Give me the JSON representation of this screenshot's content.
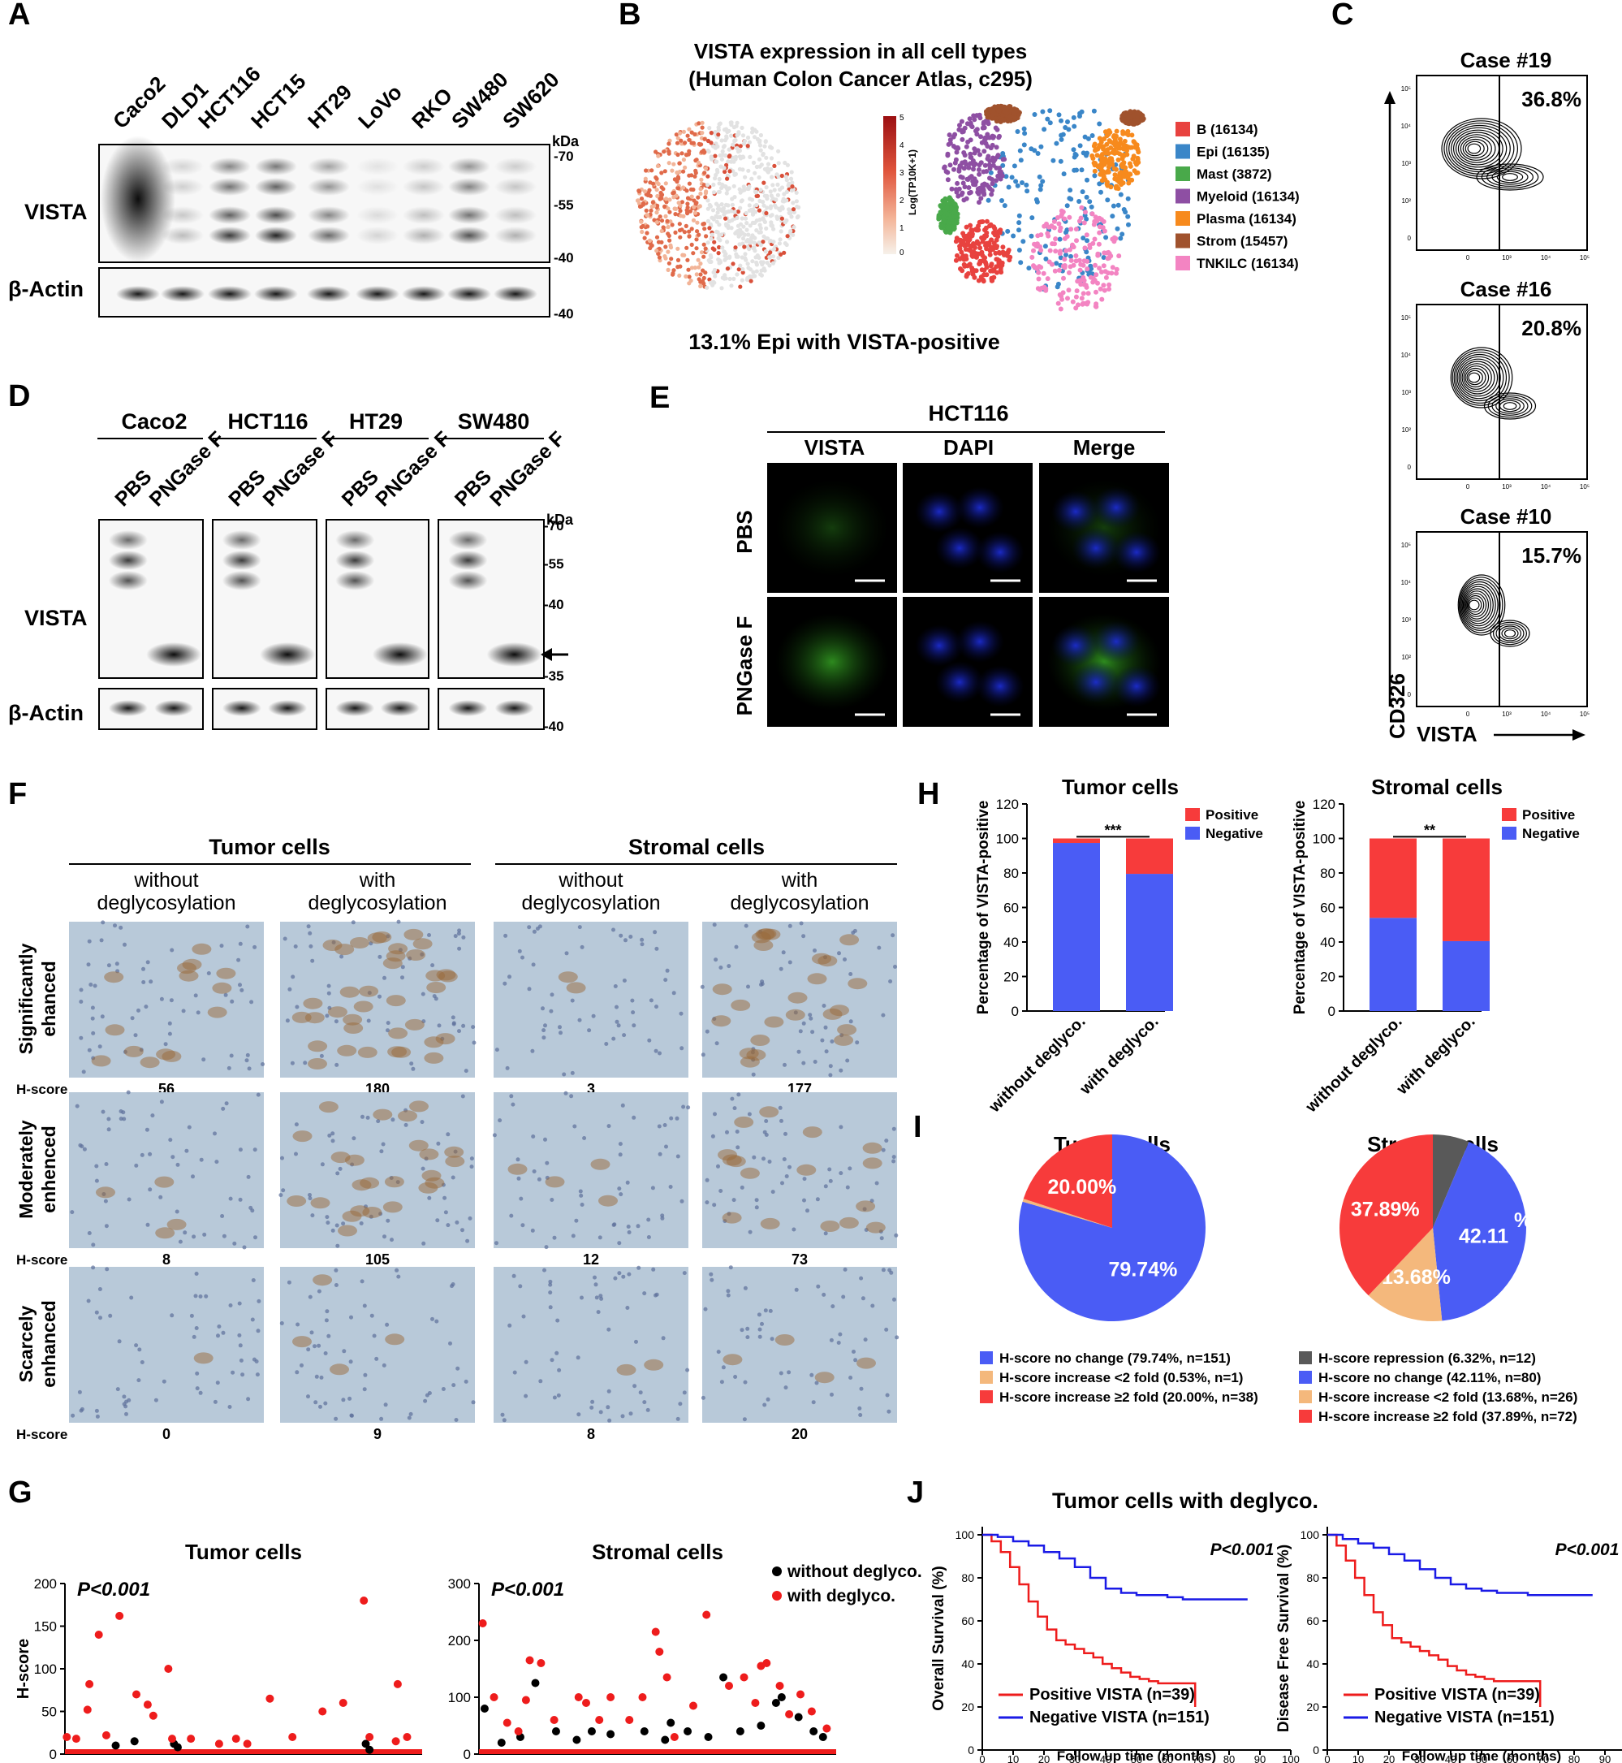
{
  "panel_labels": [
    "A",
    "B",
    "C",
    "D",
    "E",
    "F",
    "G",
    "H",
    "I",
    "J"
  ],
  "A": {
    "lanes": [
      "Caco2",
      "DLD1",
      "HCT116",
      "HCT15",
      "HT29",
      "LoVo",
      "RKO",
      "SW480",
      "SW620"
    ],
    "kda_label": "kDa",
    "markers": [
      "-70",
      "-55",
      "-40",
      "-40"
    ],
    "row_labels": [
      "VISTA",
      "β-Actin"
    ]
  },
  "B": {
    "title_line1": "VISTA expression in all cell types",
    "title_line2": "(Human Colon Cancer Atlas, c295)",
    "colorbar_label": "Log(TP10K+1)",
    "colorbar_ticks": [
      "5",
      "4",
      "3",
      "2",
      "1",
      "0"
    ],
    "legend": [
      {
        "label": "B (16134)",
        "color": "#e8423f"
      },
      {
        "label": "Epi (16135)",
        "color": "#3a86c8"
      },
      {
        "label": "Mast (3872)",
        "color": "#49a94a"
      },
      {
        "label": "Myeloid (16134)",
        "color": "#8e4fa3"
      },
      {
        "label": "Plasma (16134)",
        "color": "#f78a1d"
      },
      {
        "label": "Strom (15457)",
        "color": "#a0522d"
      },
      {
        "label": "TNKILC (16134)",
        "color": "#f384c2"
      }
    ],
    "caption": "13.1% Epi with VISTA-positive"
  },
  "C": {
    "cases": [
      {
        "title": "Case #19",
        "pct": "36.8%"
      },
      {
        "title": "Case #16",
        "pct": "20.8%"
      },
      {
        "title": "Case #10",
        "pct": "15.7%"
      }
    ],
    "y_axis": "CD326",
    "x_axis": "VISTA",
    "y_ticks": [
      "10⁵",
      "10⁴",
      "10³",
      "10²",
      "0"
    ],
    "x_ticks": [
      "0",
      "10³",
      "10⁴",
      "10⁵"
    ]
  },
  "D": {
    "groups": [
      "Caco2",
      "HCT116",
      "HT29",
      "SW480"
    ],
    "treatments": [
      "PBS",
      "PNGase F"
    ],
    "kda_label": "kDa",
    "markers": [
      "-70",
      "-55",
      "-40",
      "-35",
      "-40"
    ],
    "row_labels": [
      "VISTA",
      "β-Actin"
    ]
  },
  "E": {
    "title": "HCT116",
    "columns": [
      "VISTA",
      "DAPI",
      "Merge"
    ],
    "rows": [
      "PBS",
      "PNGase F"
    ]
  },
  "F": {
    "groups": [
      "Tumor cells",
      "Stromal cells"
    ],
    "columns": [
      {
        "line1": "without",
        "line2": "deglycosylation"
      },
      {
        "line1": "with",
        "line2": "deglycosylation"
      },
      {
        "line1": "without",
        "line2": "deglycosylation"
      },
      {
        "line1": "with",
        "line2": "deglycosylation"
      }
    ],
    "rows": [
      {
        "line1": "Significantly",
        "line2": "ehanced",
        "scores": [
          "56",
          "180",
          "3",
          "177"
        ]
      },
      {
        "line1": "Moderately",
        "line2": "enhenced",
        "scores": [
          "8",
          "105",
          "12",
          "73"
        ]
      },
      {
        "line1": "Scarcely",
        "line2": "enhanced",
        "scores": [
          "0",
          "9",
          "8",
          "20"
        ]
      }
    ],
    "hscore_label": "H-score"
  },
  "G": {
    "ylabel": "H-score",
    "legend": [
      {
        "label": "without deglyco.",
        "color": "#000000"
      },
      {
        "label": "with deglyco.",
        "color": "#ee1c1c"
      }
    ]
  },
  "H": {
    "ylabel": "Percentage of VISTA-positive",
    "legend": [
      {
        "label": "Positive",
        "color": "#f73b3b"
      },
      {
        "label": "Negative",
        "color": "#4a5cf5"
      }
    ]
  },
  "I": {},
  "J": {
    "title": "Tumor cells with deglyco.",
    "xlabel": "Follow up time (months)"
  },
  "chart_data": [
    {
      "id": "G-tumor",
      "type": "scatter",
      "title": "Tumor cells",
      "ylabel": "H-score",
      "xlim": [
        0,
        190
      ],
      "ylim": [
        0,
        200
      ],
      "yticks": [
        0,
        50,
        100,
        150,
        200
      ],
      "xticks": [
        0,
        190
      ],
      "annotation": "P<0.001",
      "series": [
        {
          "name": "without deglyco.",
          "x": [
            27,
            37,
            58,
            60,
            160,
            162
          ],
          "y": [
            10,
            15,
            12,
            8,
            12,
            5
          ]
        },
        {
          "name": "with deglyco.",
          "x": [
            1,
            6,
            12,
            13,
            18,
            22,
            29,
            38,
            44,
            47,
            55,
            57,
            67,
            82,
            91,
            97,
            109,
            121,
            137,
            148,
            159,
            162,
            176,
            177,
            182
          ],
          "y": [
            20,
            18,
            52,
            82,
            140,
            22,
            162,
            70,
            58,
            45,
            100,
            18,
            18,
            12,
            18,
            12,
            65,
            20,
            50,
            60,
            180,
            20,
            15,
            82,
            20
          ]
        }
      ]
    },
    {
      "id": "G-stromal",
      "type": "scatter",
      "title": "Stromal cells",
      "xlim": [
        0,
        190
      ],
      "ylim": [
        0,
        300
      ],
      "yticks": [
        0,
        100,
        200,
        300
      ],
      "xticks": [
        0,
        190
      ],
      "annotation": "P<0.001",
      "series": [
        {
          "name": "without deglyco.",
          "x": [
            3,
            12,
            22,
            30,
            41,
            52,
            60,
            70,
            88,
            99,
            102,
            111,
            122,
            130,
            139,
            150,
            158,
            161,
            170,
            178,
            183
          ],
          "y": [
            80,
            20,
            30,
            125,
            40,
            25,
            40,
            35,
            40,
            25,
            55,
            40,
            30,
            135,
            40,
            50,
            90,
            100,
            65,
            40,
            30
          ],
          "scatter_rows": [
            4,
            15,
            10
          ]
        },
        {
          "name": "with deglyco.",
          "x": [
            2,
            8,
            15,
            21,
            25,
            27,
            33,
            40,
            53,
            57,
            64,
            70,
            80,
            87,
            94,
            96,
            100,
            104,
            114,
            121,
            133,
            141,
            147,
            150,
            153,
            160,
            165,
            171,
            177,
            185
          ],
          "y": [
            230,
            100,
            55,
            40,
            95,
            165,
            160,
            60,
            100,
            90,
            60,
            100,
            60,
            100,
            215,
            180,
            135,
            30,
            85,
            245,
            120,
            135,
            90,
            155,
            160,
            120,
            70,
            105,
            75,
            45
          ],
          "scatter_rows": [
            6,
            28,
            20
          ]
        }
      ]
    },
    {
      "id": "H-tumor",
      "type": "bar",
      "stacked": true,
      "title": "Tumor cells",
      "categories": [
        "without deglyco.",
        "with deglyco."
      ],
      "ylabel": "Percentage of VISTA-positive",
      "ylim": [
        0,
        120
      ],
      "yticks": [
        0,
        20,
        40,
        60,
        80,
        100,
        120
      ],
      "annotation": "***",
      "series": [
        {
          "name": "Negative",
          "values": [
            97.4,
            79.5
          ]
        },
        {
          "name": "Positive",
          "values": [
            2.6,
            20.5
          ]
        }
      ]
    },
    {
      "id": "H-stromal",
      "type": "bar",
      "stacked": true,
      "title": "Stromal cells",
      "categories": [
        "without deglyco.",
        "with deglyco."
      ],
      "ylabel": "Percentage of VISTA-positive",
      "ylim": [
        0,
        120
      ],
      "yticks": [
        0,
        20,
        40,
        60,
        80,
        100,
        120
      ],
      "annotation": "**",
      "series": [
        {
          "name": "Negative",
          "values": [
            54,
            40.5
          ]
        },
        {
          "name": "Positive",
          "values": [
            46,
            59.5
          ]
        }
      ]
    },
    {
      "id": "I-tumor",
      "type": "pie",
      "title": "Tumor cells",
      "slices": [
        {
          "label": "H-score no change (79.74%, n=151)",
          "value": 79.74,
          "color": "#4a5cf5",
          "text": "79.74%"
        },
        {
          "label": "H-score increase <2 fold (0.53%, n=1)",
          "value": 0.53,
          "color": "#f4b87c",
          "text": ""
        },
        {
          "label": "H-score increase ≥2 fold (20.00%, n=38)",
          "value": 20.0,
          "color": "#f73b3b",
          "text": "20.00%"
        }
      ]
    },
    {
      "id": "I-stromal",
      "type": "pie",
      "title": "Stromal cells",
      "slices": [
        {
          "label": "H-score repression (6.32%, n=12)",
          "value": 6.32,
          "color": "#595959",
          "text": ""
        },
        {
          "label": "H-score no change (42.11%, n=80)",
          "value": 42.11,
          "color": "#4a5cf5",
          "text": "42.11"
        },
        {
          "label": "H-score increase <2 fold (13.68%, n=26)",
          "value": 13.68,
          "color": "#f4b87c",
          "text": "13.68%"
        },
        {
          "label": "H-score increase ≥2 fold (37.89%, n=72)",
          "value": 37.89,
          "color": "#f73b3b",
          "text": "37.89%"
        }
      ],
      "stray_label": "%"
    },
    {
      "id": "J-os",
      "type": "line",
      "ylabel": "Overall Survival (%)",
      "xlabel": "Follow up time (months)",
      "xlim": [
        0,
        100
      ],
      "ylim": [
        0,
        100
      ],
      "xticks": [
        0,
        10,
        20,
        30,
        40,
        50,
        60,
        70,
        80,
        90,
        100
      ],
      "yticks": [
        0,
        20,
        40,
        60,
        80,
        100
      ],
      "annotation": "P<0.001",
      "series": [
        {
          "name": "Positive VISTA (n=39)",
          "color": "#ee1c1c",
          "x": [
            0,
            3,
            6,
            9,
            12,
            15,
            18,
            21,
            24,
            27,
            30,
            33,
            36,
            39,
            42,
            45,
            48,
            51,
            54,
            57,
            60,
            63,
            66,
            69
          ],
          "y": [
            100,
            97,
            92,
            85,
            77,
            69,
            62,
            56,
            51,
            49,
            47,
            45,
            43,
            40,
            38,
            36,
            34,
            33,
            32,
            31,
            31,
            31,
            31,
            20
          ]
        },
        {
          "name": "Negative VISTA (n=151)",
          "color": "#1a1ae6",
          "x": [
            0,
            5,
            10,
            15,
            20,
            25,
            30,
            35,
            40,
            45,
            50,
            55,
            60,
            65,
            70,
            75,
            80,
            86
          ],
          "y": [
            100,
            99,
            97,
            95,
            92,
            89,
            85,
            80,
            75,
            73,
            72,
            72,
            71,
            70,
            70,
            70,
            70,
            70
          ]
        }
      ]
    },
    {
      "id": "J-dfs",
      "type": "line",
      "ylabel": "Disease Free Survival (%)",
      "xlabel": "Follow up time (months)",
      "xlim": [
        0,
        100
      ],
      "ylim": [
        0,
        100
      ],
      "xticks": [
        0,
        10,
        20,
        30,
        40,
        50,
        60,
        70,
        80,
        90,
        100
      ],
      "yticks": [
        0,
        20,
        40,
        60,
        80,
        100
      ],
      "annotation": "P<0.001",
      "series": [
        {
          "name": "Positive VISTA (n=39)",
          "color": "#ee1c1c",
          "x": [
            0,
            3,
            6,
            9,
            12,
            15,
            18,
            21,
            24,
            27,
            30,
            33,
            36,
            39,
            42,
            45,
            48,
            51,
            54,
            57,
            60,
            63,
            66,
            69
          ],
          "y": [
            100,
            95,
            88,
            80,
            72,
            64,
            58,
            52,
            50,
            48,
            46,
            44,
            42,
            39,
            37,
            35,
            34,
            33,
            32,
            32,
            32,
            32,
            32,
            20
          ]
        },
        {
          "name": "Negative VISTA (n=151)",
          "color": "#1a1ae6",
          "x": [
            0,
            5,
            10,
            15,
            20,
            25,
            30,
            35,
            40,
            45,
            50,
            55,
            60,
            65,
            70,
            75,
            80,
            86
          ],
          "y": [
            100,
            98,
            96,
            94,
            91,
            88,
            84,
            80,
            77,
            75,
            74,
            73,
            73,
            72,
            72,
            72,
            72,
            72
          ]
        }
      ]
    }
  ]
}
